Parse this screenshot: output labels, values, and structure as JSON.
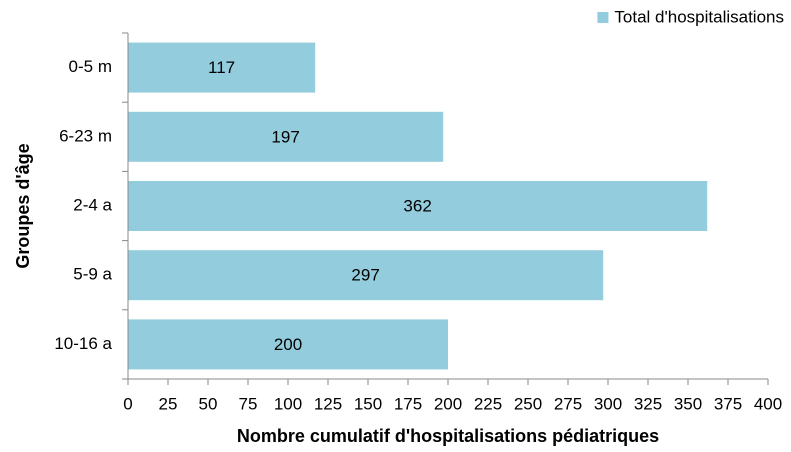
{
  "chart_data": {
    "type": "bar",
    "title_x": "Nombre cumulatif d'hospitalisations pédiatriques",
    "title_y": "Groupes d'âge",
    "categories": [
      "0-5 m",
      "6-23 m",
      "2-4 a",
      "5-9 a",
      "10-16 a"
    ],
    "series": [
      {
        "name": "Total d'hospitalisations",
        "color": "#93cddd",
        "values": [
          117,
          197,
          362,
          297,
          200
        ]
      }
    ],
    "xlim": [
      0,
      400
    ],
    "xticks": [
      0,
      25,
      50,
      75,
      100,
      125,
      150,
      175,
      200,
      225,
      250,
      275,
      300,
      325,
      350,
      375,
      400
    ],
    "legend": "upper right"
  }
}
